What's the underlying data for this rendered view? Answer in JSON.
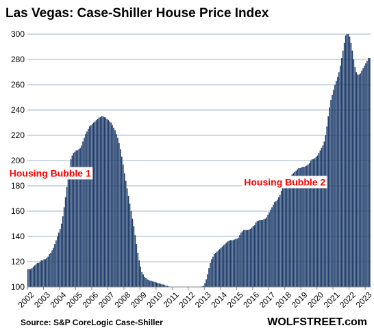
{
  "chart_data": {
    "type": "bar",
    "title": "Las Vegas: Case-Shiller House Price Index",
    "source": "Source: S&P CoreLogic Case-Shiller",
    "brand": "WOLFSTREET.com",
    "bar_color": "#1f3d6b",
    "grid": true,
    "ylim": [
      100,
      300
    ],
    "y_ticks": [
      "100",
      "120",
      "140",
      "160",
      "180",
      "200",
      "220",
      "240",
      "260",
      "280",
      "300"
    ],
    "x_ticks": [
      "2002",
      "2003",
      "2004",
      "2005",
      "2006",
      "2007",
      "2008",
      "2009",
      "2010",
      "2011",
      "2012",
      "2013",
      "2014",
      "2015",
      "2016",
      "2017",
      "2018",
      "2019",
      "2020",
      "2021",
      "2022",
      "2023"
    ],
    "annotations": [
      {
        "text": "Housing Bubble 1",
        "at": "2003-06",
        "y": 190
      },
      {
        "text": "Housing Bubble 2",
        "at": "2018-01",
        "y": 183
      }
    ],
    "x_start": "2002-01",
    "values": [
      114.0,
      114.0,
      114.0,
      115.0,
      116.0,
      117.0,
      118.0,
      119.0,
      119.0,
      120.0,
      121.0,
      121.0,
      122.0,
      122.0,
      123.0,
      124.0,
      126.0,
      127.0,
      129.0,
      131.0,
      134.0,
      137.0,
      140.0,
      143.0,
      146.0,
      150.0,
      156.0,
      163.0,
      171.0,
      179.0,
      187.0,
      195.0,
      201.0,
      204.0,
      206.0,
      207.0,
      208.0,
      208.0,
      209.0,
      210.0,
      212.0,
      215.0,
      218.0,
      221.0,
      223.0,
      225.0,
      227.0,
      228.0,
      229.0,
      230.0,
      231.0,
      232.0,
      233.0,
      234.0,
      234.5,
      235.0,
      235.0,
      234.5,
      234.0,
      233.0,
      232.0,
      231.0,
      230.0,
      228.0,
      226.0,
      224.0,
      221.0,
      218.0,
      214.0,
      209.0,
      203.0,
      197.0,
      190.0,
      184.0,
      178.0,
      172.0,
      166.0,
      160.0,
      154.0,
      148.0,
      141.0,
      134.0,
      127.0,
      121.0,
      116.0,
      112.0,
      110.0,
      108.0,
      107.0,
      106.0,
      105.5,
      105.0,
      105.0,
      104.5,
      104.0,
      104.0,
      103.5,
      103.0,
      103.0,
      102.5,
      102.0,
      102.0,
      101.5,
      101.0,
      101.0,
      100.5,
      100.2,
      100.0,
      100.0,
      100.0,
      100.0,
      100.0,
      100.0,
      100.0,
      100.0,
      100.0,
      100.0,
      100.0,
      100.0,
      100.0,
      100.0,
      100.0,
      100.0,
      100.0,
      100.0,
      100.0,
      100.0,
      100.0,
      100.0,
      100.0,
      100.5,
      101.0,
      103.0,
      106.0,
      110.0,
      115.0,
      119.0,
      122.0,
      124.0,
      126.0,
      127.0,
      128.0,
      129.0,
      130.0,
      131.0,
      132.0,
      133.0,
      134.0,
      135.0,
      136.0,
      136.5,
      137.0,
      137.0,
      137.0,
      137.5,
      138.0,
      138.0,
      139.0,
      141.0,
      143.0,
      144.0,
      145.0,
      145.0,
      145.0,
      145.0,
      145.5,
      146.0,
      147.0,
      148.0,
      149.0,
      151.0,
      152.0,
      152.5,
      153.0,
      153.0,
      153.0,
      153.5,
      154.0,
      155.0,
      157.0,
      159.0,
      161.0,
      163.0,
      165.0,
      167.0,
      168.0,
      169.0,
      171.0,
      173.0,
      176.0,
      179.0,
      181.0,
      183.0,
      185.0,
      186.0,
      187.0,
      188.0,
      189.0,
      190.0,
      191.0,
      192.0,
      193.0,
      194.0,
      194.0,
      194.5,
      195.0,
      195.0,
      195.5,
      196.0,
      197.0,
      198.0,
      200.0,
      201.0,
      201.0,
      202.0,
      203.0,
      204.0,
      206.0,
      208.0,
      210.0,
      212.0,
      215.0,
      220.0,
      227.0,
      235.0,
      242.0,
      248.0,
      252.0,
      256.0,
      260.0,
      263.0,
      266.0,
      270.0,
      275.0,
      281.0,
      287.0,
      293.0,
      299.0,
      300.0,
      300.0,
      298.0,
      293.0,
      287.0,
      280.0,
      274.0,
      270.0,
      268.0,
      268.0,
      269.0,
      271.0,
      273.0,
      275.0,
      277.0,
      279.0,
      281.0,
      281.0
    ]
  }
}
